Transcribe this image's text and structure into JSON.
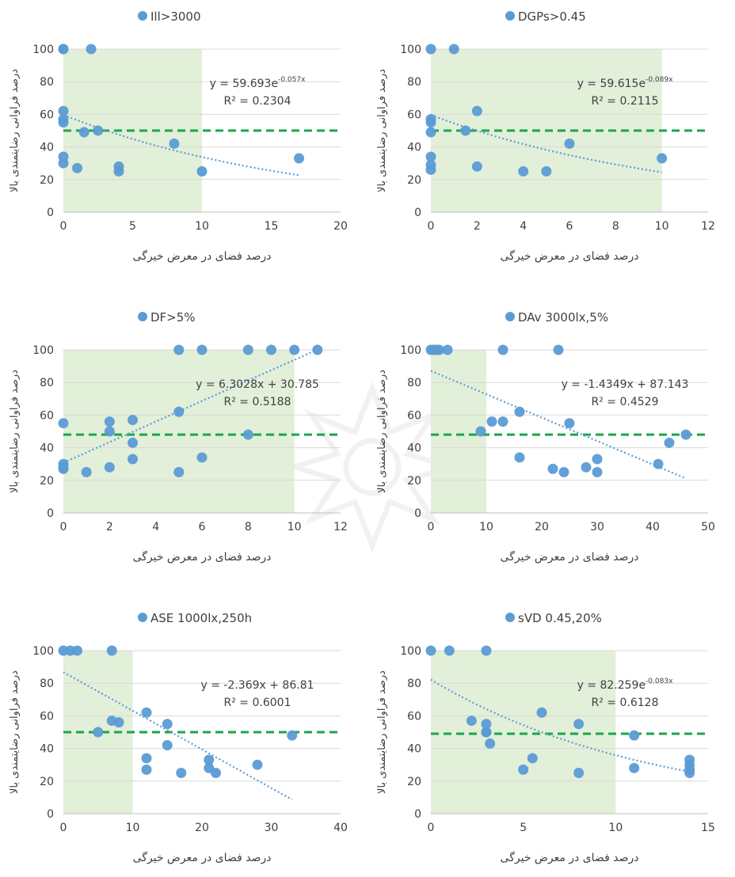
{
  "chart_data": [
    {
      "type": "scatter",
      "title": "Ill>3000",
      "xlabel": "درصد فضای در معرض خیرگی",
      "ylabel": "درصد فراوانی رضایتمندی بالا",
      "xlim": [
        0,
        20
      ],
      "ylim": [
        0,
        100
      ],
      "xticks": [
        "0",
        "5",
        "10",
        "15",
        "20"
      ],
      "yticks": [
        "0",
        "20",
        "40",
        "60",
        "80",
        "100"
      ],
      "green_zone_x": [
        0,
        10
      ],
      "threshold_y": 50,
      "trend": {
        "kind": "exp",
        "a": 59.693,
        "b": -0.057,
        "x_range": [
          0,
          17
        ]
      },
      "equation": "y = 59.693e",
      "equation_exp": "-0.057x",
      "r2": "R² = 0.2304",
      "x": [
        0,
        0,
        0,
        0,
        0,
        0,
        0,
        1,
        1.5,
        2,
        2.5,
        4,
        4,
        8,
        10,
        17
      ],
      "y": [
        100,
        100,
        62,
        57,
        55,
        34,
        30,
        27,
        49,
        100,
        50,
        28,
        25,
        42,
        25,
        33
      ],
      "legend_position": "top"
    },
    {
      "type": "scatter",
      "title": "DGPs>0.45",
      "xlabel": "درصد فضای در معرض خیرگی",
      "ylabel": "درصد فراوانی رضایتمندی بالا",
      "xlim": [
        0,
        12
      ],
      "ylim": [
        0,
        100
      ],
      "xticks": [
        "0",
        "2",
        "4",
        "6",
        "8",
        "10",
        "12"
      ],
      "yticks": [
        "0",
        "20",
        "40",
        "60",
        "80",
        "100"
      ],
      "green_zone_x": [
        0,
        10
      ],
      "threshold_y": 50,
      "trend": {
        "kind": "exp",
        "a": 59.615,
        "b": -0.089,
        "x_range": [
          0,
          10
        ]
      },
      "equation": "y = 59.615e",
      "equation_exp": "-0.089x",
      "r2": "R² = 0.2115",
      "x": [
        0,
        0,
        0,
        0,
        0,
        0,
        0,
        1,
        1.5,
        2,
        2,
        4,
        5,
        6,
        10
      ],
      "y": [
        100,
        57,
        55,
        49,
        34,
        29,
        26,
        100,
        50,
        62,
        28,
        25,
        25,
        42,
        33
      ],
      "legend_position": "top"
    },
    {
      "type": "scatter",
      "title": "DF>5%",
      "xlabel": "درصد فضای در معرض خیرگی",
      "ylabel": "درصد فراوانی رضایتمندی بالا",
      "xlim": [
        0,
        12
      ],
      "ylim": [
        0,
        100
      ],
      "xticks": [
        "0",
        "2",
        "4",
        "6",
        "8",
        "10",
        "12"
      ],
      "yticks": [
        "0",
        "20",
        "40",
        "60",
        "80",
        "100"
      ],
      "green_zone_x": [
        0,
        10
      ],
      "threshold_y": 48,
      "trend": {
        "kind": "linear",
        "a": 30.785,
        "b": 6.3028,
        "x_range": [
          0,
          11
        ]
      },
      "equation": "y = 6.3028x + 30.785",
      "equation_exp": "",
      "r2": "R² = 0.5188",
      "x": [
        0,
        0,
        0,
        0,
        1,
        2,
        2,
        2,
        3,
        3,
        3,
        5,
        5,
        5,
        6,
        6,
        8,
        8,
        9,
        10,
        11
      ],
      "y": [
        55,
        30,
        27,
        28,
        25,
        56,
        50,
        28,
        57,
        43,
        33,
        100,
        62,
        25,
        100,
        34,
        100,
        48,
        100,
        100,
        100
      ],
      "legend_position": "top"
    },
    {
      "type": "scatter",
      "title": "DAv 3000lx,5%",
      "xlabel": "درصد فضای در معرض خیرگی",
      "ylabel": "درصد فراوانی رضایتمندی بالا",
      "xlim": [
        0,
        50
      ],
      "ylim": [
        0,
        100
      ],
      "xticks": [
        "0",
        "10",
        "20",
        "30",
        "40",
        "50"
      ],
      "yticks": [
        "0",
        "20",
        "40",
        "60",
        "80",
        "100"
      ],
      "green_zone_x": [
        0,
        10
      ],
      "threshold_y": 48,
      "trend": {
        "kind": "linear",
        "a": 87.143,
        "b": -1.4349,
        "x_range": [
          0,
          46
        ]
      },
      "equation": "y = -1.4349x + 87.143",
      "equation_exp": "",
      "r2": "R² = 0.4529",
      "x": [
        0,
        0.5,
        1,
        1.5,
        3,
        9,
        11,
        13,
        13,
        16,
        16,
        22,
        23,
        24,
        25,
        28,
        30,
        30,
        41,
        43,
        46
      ],
      "y": [
        100,
        100,
        100,
        100,
        100,
        50,
        56,
        100,
        56,
        62,
        34,
        27,
        100,
        25,
        55,
        28,
        33,
        25,
        30,
        43,
        48
      ],
      "legend_position": "top"
    },
    {
      "type": "scatter",
      "title": "ASE 1000lx,250h",
      "xlabel": "درصد فضای در معرض خیرگی",
      "ylabel": "درصد فراوانی رضایتمندی بالا",
      "xlim": [
        0,
        40
      ],
      "ylim": [
        0,
        100
      ],
      "xticks": [
        "0",
        "10",
        "20",
        "30",
        "40"
      ],
      "yticks": [
        "0",
        "20",
        "40",
        "60",
        "80",
        "100"
      ],
      "green_zone_x": [
        0,
        10
      ],
      "threshold_y": 50,
      "trend": {
        "kind": "linear",
        "a": 86.81,
        "b": -2.369,
        "x_range": [
          0,
          33
        ]
      },
      "equation": "y = -2.369x + 86.81",
      "equation_exp": "",
      "r2": "R² = 0.6001",
      "x": [
        0,
        1,
        2,
        7,
        7,
        8,
        5,
        12,
        12,
        12,
        15,
        15,
        17,
        21,
        21,
        22,
        28,
        33
      ],
      "y": [
        100,
        100,
        100,
        100,
        57,
        56,
        50,
        62,
        34,
        27,
        55,
        42,
        25,
        33,
        28,
        25,
        30,
        48
      ],
      "legend_position": "top"
    },
    {
      "type": "scatter",
      "title": "sVD 0.45,20%",
      "xlabel": "درصد فضای در معرض خیرگی",
      "ylabel": "درصد فراوانی رضایتمندی بالا",
      "xlim": [
        0,
        15
      ],
      "ylim": [
        0,
        100
      ],
      "xticks": [
        "0",
        "5",
        "10",
        "15"
      ],
      "yticks": [
        "0",
        "20",
        "40",
        "60",
        "80",
        "100"
      ],
      "green_zone_x": [
        0,
        10
      ],
      "threshold_y": 49,
      "trend": {
        "kind": "exp",
        "a": 82.259,
        "b": -0.083,
        "x_range": [
          0,
          14
        ]
      },
      "equation": "y = 82.259e",
      "equation_exp": "-0.083x",
      "r2": "R² = 0.6128",
      "x": [
        0,
        1,
        3,
        3,
        2.2,
        3,
        3,
        3.2,
        6,
        5,
        5.5,
        8,
        8,
        11,
        11,
        14,
        14,
        14,
        14
      ],
      "y": [
        100,
        100,
        100,
        55,
        57,
        50,
        50,
        43,
        62,
        27,
        34,
        55,
        25,
        48,
        28,
        33,
        30,
        27,
        25
      ],
      "legend_position": "top"
    }
  ],
  "colors": {
    "point": "#5b9bd5",
    "trend": "#5b9bd5",
    "threshold": "#1aa64a",
    "zone": "#e2efd9",
    "grid": "#d9d9d9",
    "text": "#404040"
  }
}
